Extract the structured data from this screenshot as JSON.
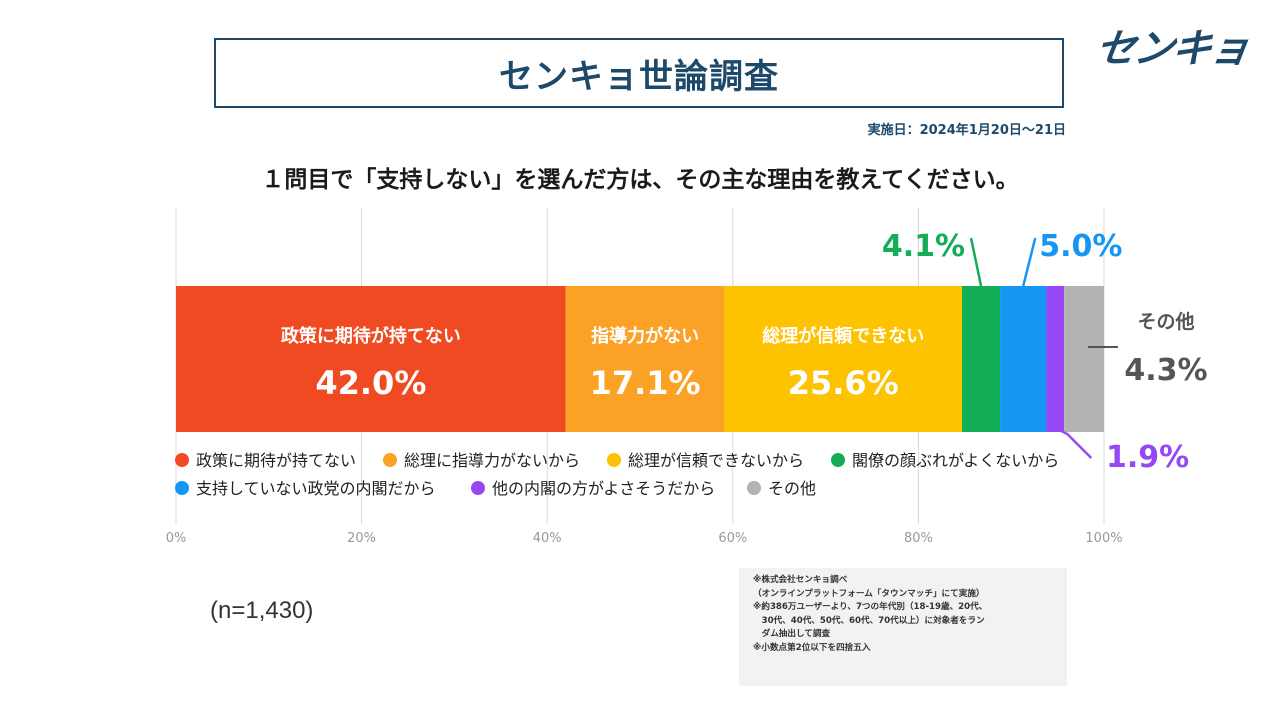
{
  "header": {
    "title": "センキョ世論調査",
    "logo_text": "センキョ",
    "date": "実施日：2024年1月20日〜21日"
  },
  "question": "１問目で「支持しない」を選んだ方は、その主な理由を教えてください。",
  "sample_size": "(n=1,430)",
  "notes": [
    "※株式会社センキョ調べ",
    "（オンラインプラットフォーム「タウンマッチ」にて実施）",
    "※約386万ユーザーより、7つの年代別（18-19歳、20代、",
    "　30代、40代、50代、60代、70代以上）に対象者をラン",
    "　ダム抽出して調査",
    "※小数点第2位以下を四捨五入"
  ],
  "chart_data": {
    "type": "bar",
    "orientation": "horizontal-stacked-100",
    "xlim": [
      0,
      100
    ],
    "ticks": [
      "0%",
      "20%",
      "40%",
      "60%",
      "80%",
      "100%"
    ],
    "grid": true,
    "legend_placement": "bottom",
    "series": [
      {
        "name": "政策に期待が持てない",
        "legend": "政策に期待が持てない",
        "value": 42.0,
        "label": "42.0%",
        "color": "#f04a23"
      },
      {
        "name": "指導力がない",
        "legend": "総理に指導力がないから",
        "value": 17.1,
        "label": "17.1%",
        "color": "#fba126"
      },
      {
        "name": "総理が信頼できない",
        "legend": "総理が信頼できないから",
        "value": 25.6,
        "label": "25.6%",
        "color": "#fdc200"
      },
      {
        "name": "",
        "legend": "閣僚の顔ぶれがよくないから",
        "value": 4.1,
        "label": "4.1%",
        "color": "#14ad57"
      },
      {
        "name": "",
        "legend": "支持していない政党の内閣だから",
        "value": 5.0,
        "label": "5.0%",
        "color": "#1696f3"
      },
      {
        "name": "",
        "legend": "他の内閣の方がよさそうだから",
        "value": 1.9,
        "label": "1.9%",
        "color": "#9548f4"
      },
      {
        "name": "その他",
        "legend": "その他",
        "value": 4.3,
        "label": "4.3%",
        "color": "#b3b3b3"
      }
    ]
  }
}
